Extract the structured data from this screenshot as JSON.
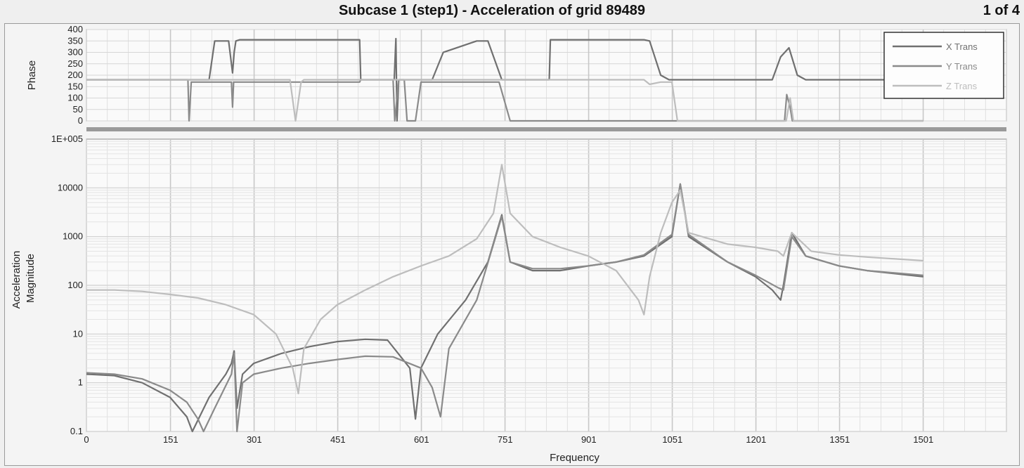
{
  "window": {
    "title": "Subcase 1 (step1) - Acceleration of grid 89489",
    "page_counter": "1 of 4"
  },
  "colors": {
    "x_trans": "#707070",
    "y_trans": "#8a8a8a",
    "z_trans": "#bdbdbd",
    "plot_bg": "#fafafa",
    "grid": "#d6d6d6"
  },
  "chart_data": [
    {
      "type": "line",
      "title": "",
      "ylabel": "Phase",
      "xlabel": "",
      "xlim": [
        0,
        1650
      ],
      "ylim": [
        0,
        400
      ],
      "yticks": [
        0,
        50,
        100,
        150,
        200,
        250,
        300,
        350,
        400
      ],
      "xticks": [
        0,
        151,
        301,
        451,
        601,
        751,
        901,
        1051,
        1201,
        1351,
        1501
      ],
      "grid": true,
      "legend_position": "top-right",
      "series": [
        {
          "name": "X Trans",
          "x": [
            0,
            180,
            220,
            230,
            255,
            262,
            265,
            268,
            275,
            290,
            300,
            490,
            492,
            552,
            555,
            557,
            560,
            620,
            640,
            700,
            720,
            745,
            760,
            830,
            832,
            1000,
            1010,
            1030,
            1045,
            1200,
            1230,
            1245,
            1260,
            1275,
            1290,
            1501
          ],
          "y": [
            180,
            180,
            180,
            350,
            350,
            210,
            300,
            350,
            355,
            355,
            355,
            355,
            180,
            180,
            360,
            0,
            180,
            180,
            300,
            350,
            350,
            180,
            180,
            180,
            355,
            355,
            350,
            200,
            180,
            180,
            180,
            280,
            320,
            200,
            180,
            180
          ]
        },
        {
          "name": "Y Trans",
          "x": [
            0,
            182,
            184,
            188,
            260,
            262,
            264,
            268,
            490,
            492,
            550,
            553,
            560,
            570,
            575,
            590,
            600,
            740,
            760,
            1015,
            1050,
            1055,
            1060,
            1248,
            1252,
            1256,
            1262,
            1266,
            1501
          ],
          "y": [
            180,
            180,
            0,
            170,
            170,
            60,
            170,
            170,
            170,
            180,
            180,
            0,
            180,
            180,
            0,
            0,
            170,
            170,
            0,
            0,
            0,
            0,
            0,
            0,
            0,
            115,
            60,
            0,
            0
          ]
        },
        {
          "name": "Z Trans",
          "x": [
            0,
            365,
            375,
            385,
            390,
            1000,
            1010,
            1030,
            1050,
            1060,
            1245,
            1255,
            1262,
            1268,
            1501
          ],
          "y": [
            180,
            180,
            0,
            170,
            180,
            180,
            160,
            170,
            170,
            0,
            0,
            0,
            100,
            0,
            0
          ]
        }
      ]
    },
    {
      "type": "line",
      "title": "",
      "ylabel": "Acceleration Magnitude",
      "xlabel": "Frequency",
      "xlim": [
        0,
        1650
      ],
      "ylim": [
        0.1,
        100000
      ],
      "yscale": "log",
      "yticks": [
        0.1,
        1,
        10,
        100,
        1000,
        10000,
        100000
      ],
      "ytick_labels": [
        "0.1",
        "1",
        "10",
        "100",
        "1000",
        "10000",
        "1E+005"
      ],
      "xticks": [
        0,
        151,
        301,
        451,
        601,
        751,
        901,
        1051,
        1201,
        1351,
        1501
      ],
      "grid": true,
      "series": [
        {
          "name": "X Trans",
          "x": [
            0,
            50,
            100,
            150,
            180,
            190,
            220,
            250,
            260,
            265,
            270,
            280,
            300,
            350,
            400,
            450,
            500,
            540,
            580,
            590,
            600,
            630,
            680,
            720,
            745,
            760,
            800,
            850,
            900,
            950,
            1000,
            1050,
            1065,
            1080,
            1150,
            1200,
            1230,
            1245,
            1250,
            1265,
            1290,
            1350,
            1400,
            1501
          ],
          "y": [
            1.5,
            1.4,
            1,
            0.5,
            0.2,
            0.1,
            0.5,
            1.5,
            2.5,
            4.5,
            0.3,
            1.5,
            2.5,
            4,
            5.5,
            7,
            7.8,
            7.5,
            2,
            0.18,
            2,
            10,
            50,
            300,
            2800,
            300,
            200,
            200,
            250,
            300,
            400,
            1000,
            12000,
            1000,
            300,
            150,
            80,
            50,
            100,
            1200,
            400,
            250,
            200,
            150
          ]
        },
        {
          "name": "Y Trans",
          "x": [
            0,
            50,
            100,
            150,
            180,
            200,
            210,
            230,
            260,
            265,
            270,
            280,
            300,
            350,
            400,
            450,
            500,
            550,
            600,
            620,
            635,
            650,
            700,
            745,
            760,
            800,
            850,
            900,
            950,
            1000,
            1050,
            1065,
            1080,
            1150,
            1200,
            1240,
            1250,
            1265,
            1290,
            1350,
            1400,
            1501
          ],
          "y": [
            1.6,
            1.5,
            1.2,
            0.7,
            0.4,
            0.18,
            0.1,
            0.3,
            1.5,
            4,
            0.1,
            1,
            1.5,
            2,
            2.5,
            3,
            3.5,
            3.4,
            2,
            0.8,
            0.2,
            5,
            50,
            2600,
            300,
            220,
            220,
            250,
            300,
            420,
            1100,
            12000,
            1100,
            300,
            160,
            90,
            80,
            1000,
            400,
            250,
            200,
            160
          ]
        },
        {
          "name": "Z Trans",
          "x": [
            0,
            50,
            100,
            150,
            200,
            250,
            300,
            340,
            370,
            380,
            390,
            420,
            450,
            500,
            550,
            600,
            650,
            700,
            730,
            745,
            760,
            800,
            850,
            900,
            950,
            990,
            1000,
            1010,
            1030,
            1050,
            1065,
            1080,
            1150,
            1200,
            1240,
            1250,
            1265,
            1300,
            1350,
            1400,
            1501
          ],
          "y": [
            80,
            80,
            75,
            65,
            55,
            40,
            25,
            10,
            2,
            0.6,
            5,
            20,
            40,
            80,
            150,
            250,
            400,
            900,
            3000,
            30000,
            3000,
            1000,
            600,
            400,
            200,
            50,
            25,
            150,
            1200,
            5000,
            9000,
            1200,
            700,
            600,
            500,
            400,
            1200,
            500,
            420,
            380,
            320
          ]
        }
      ]
    }
  ]
}
